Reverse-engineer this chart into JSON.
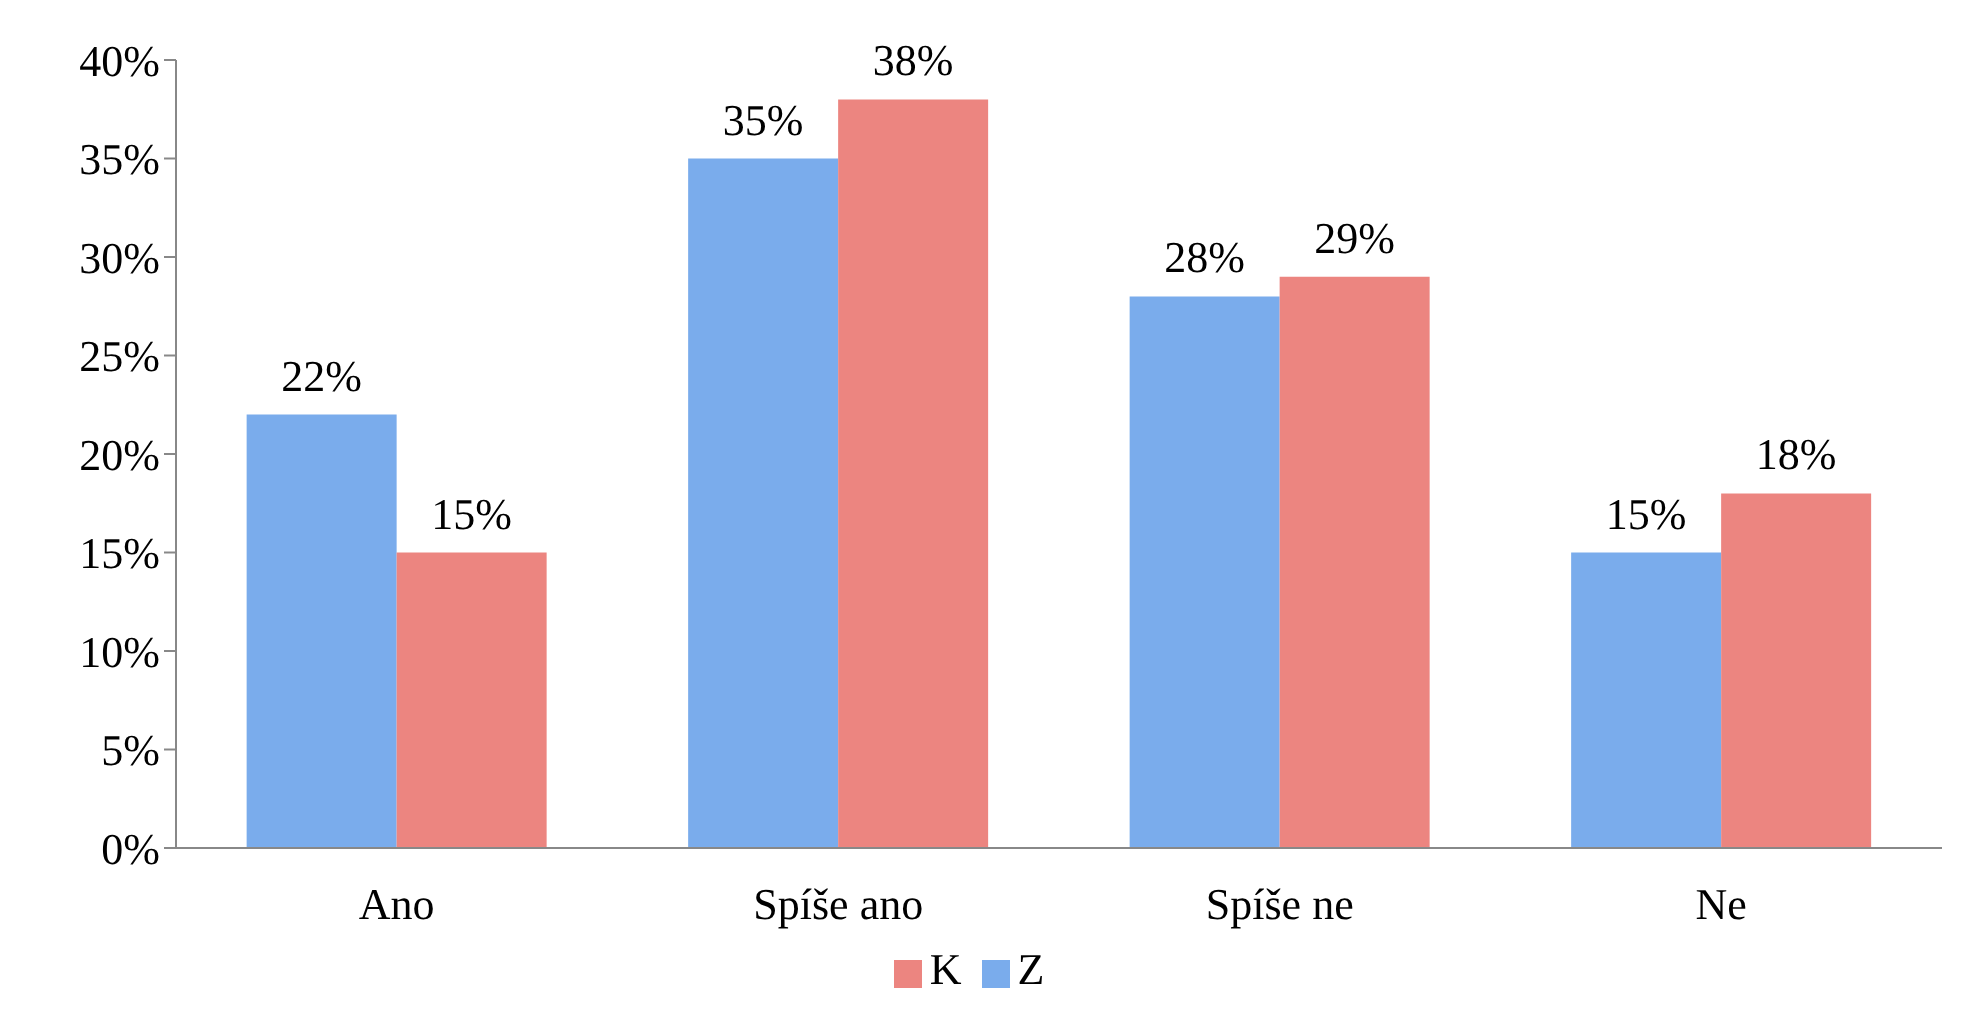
{
  "chart_data": {
    "type": "bar",
    "categories": [
      "Ano",
      "Spíše ano",
      "Spíše ne",
      "Ne"
    ],
    "series": [
      {
        "name": "Z",
        "color": "#7aacec",
        "values": [
          22,
          35,
          28,
          15
        ],
        "value_labels": [
          "22%",
          "35%",
          "28%",
          "15%"
        ]
      },
      {
        "name": "K",
        "color": "#ec8580",
        "values": [
          15,
          38,
          29,
          18
        ],
        "value_labels": [
          "15%",
          "38%",
          "29%",
          "18%"
        ]
      }
    ],
    "ylim": [
      0,
      40
    ],
    "yticks": [
      {
        "value": 0,
        "label": "0%"
      },
      {
        "value": 5,
        "label": "5%"
      },
      {
        "value": 10,
        "label": "10%"
      },
      {
        "value": 15,
        "label": "15%"
      },
      {
        "value": 20,
        "label": "20%"
      },
      {
        "value": 25,
        "label": "25%"
      },
      {
        "value": 30,
        "label": "30%"
      },
      {
        "value": 35,
        "label": "35%"
      },
      {
        "value": 40,
        "label": "40%"
      }
    ],
    "grid": false,
    "legend": "bottom"
  }
}
